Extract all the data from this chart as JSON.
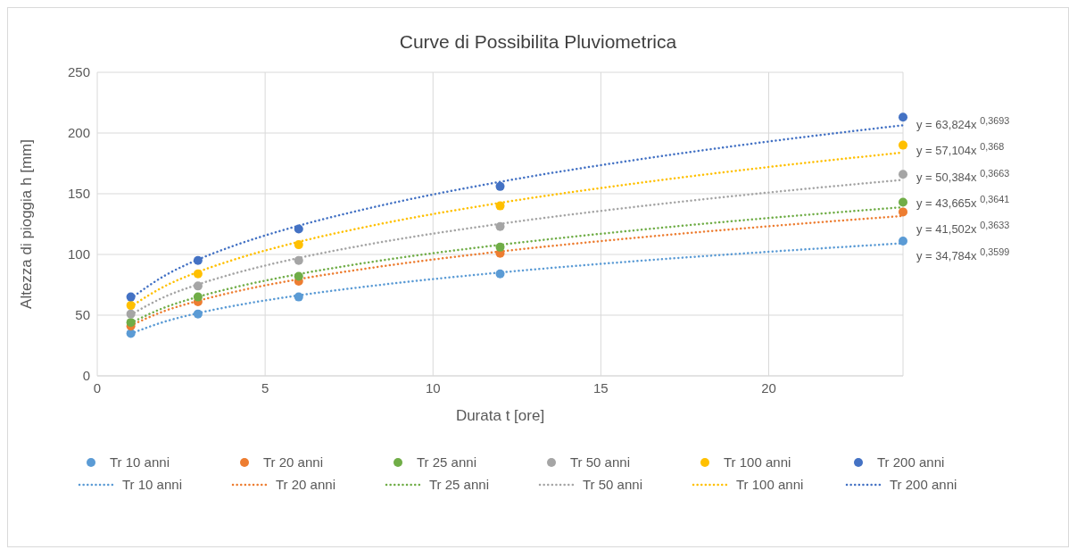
{
  "chart_data": {
    "type": "scatter",
    "title": "Curve di Possibilita Pluviometrica",
    "xlabel": "Durata t [ore]",
    "ylabel": "Altezza di pioggia h [mm]",
    "xlim": [
      0,
      24
    ],
    "xticks": [
      0,
      5,
      10,
      15,
      20
    ],
    "ylim": [
      0,
      250
    ],
    "yticks": [
      0,
      50,
      100,
      150,
      200,
      250
    ],
    "grid": true,
    "legend": "bottom",
    "x": [
      1,
      3,
      6,
      12,
      24
    ],
    "series": [
      {
        "name": "Tr 10 anni",
        "marker": "circle",
        "color": "#5b9bd5",
        "values": [
          35,
          51,
          65,
          84,
          111
        ]
      },
      {
        "name": "Tr 20 anni",
        "marker": "circle",
        "color": "#ed7d31",
        "values": [
          41,
          61,
          78,
          101,
          135
        ]
      },
      {
        "name": "Tr 25 anni",
        "marker": "circle",
        "color": "#70ad47",
        "values": [
          44,
          65,
          82,
          106,
          143
        ]
      },
      {
        "name": "Tr 50 anni",
        "marker": "circle",
        "color": "#a5a5a5",
        "values": [
          51,
          74,
          95,
          123,
          166
        ]
      },
      {
        "name": "Tr 100 anni",
        "marker": "circle",
        "color": "#ffc000",
        "values": [
          58,
          84,
          108,
          140,
          190
        ]
      },
      {
        "name": "Tr 200 anni",
        "marker": "circle",
        "color": "#4472c4",
        "values": [
          65,
          95,
          121,
          156,
          213
        ]
      },
      {
        "type": "line",
        "line_style": "dotted",
        "name": "Tr 10 anni",
        "color": "#5b9bd5",
        "x": [
          1,
          2,
          3,
          4,
          6,
          8,
          12,
          16,
          20,
          24
        ],
        "values": [
          34.8,
          44.6,
          51.7,
          57.3,
          66.3,
          73.5,
          85.1,
          94.4,
          102.2,
          109.2
        ]
      },
      {
        "type": "line",
        "line_style": "dotted",
        "name": "Tr 20 anni",
        "color": "#ed7d31",
        "x": [
          1,
          2,
          3,
          4,
          6,
          8,
          12,
          16,
          20,
          24
        ],
        "values": [
          41.5,
          53.4,
          61.8,
          68.7,
          79.6,
          88.3,
          102.4,
          113.6,
          123.2,
          131.7
        ]
      },
      {
        "type": "line",
        "line_style": "dotted",
        "name": "Tr 25 anni",
        "color": "#70ad47",
        "x": [
          1,
          2,
          3,
          4,
          6,
          8,
          12,
          16,
          20,
          24
        ],
        "values": [
          43.7,
          56.2,
          65.1,
          72.3,
          83.8,
          93.1,
          107.9,
          119.8,
          130.0,
          138.9
        ]
      },
      {
        "type": "line",
        "line_style": "dotted",
        "name": "Tr 50 anni",
        "color": "#a5a5a5",
        "x": [
          1,
          2,
          3,
          4,
          6,
          8,
          12,
          16,
          20,
          24
        ],
        "values": [
          50.4,
          65.0,
          75.3,
          83.7,
          97.1,
          107.9,
          125.2,
          139.1,
          151.0,
          161.4
        ]
      },
      {
        "type": "line",
        "line_style": "dotted",
        "name": "Tr 100 anni",
        "color": "#ffc000",
        "x": [
          1,
          2,
          3,
          4,
          6,
          8,
          12,
          16,
          20,
          24
        ],
        "values": [
          57.1,
          73.7,
          85.6,
          95.1,
          110.4,
          122.7,
          142.5,
          158.4,
          172.0,
          183.9
        ]
      },
      {
        "type": "line",
        "line_style": "dotted",
        "name": "Tr 200 anni",
        "color": "#4472c4",
        "x": [
          1,
          2,
          3,
          4,
          6,
          8,
          12,
          16,
          20,
          24
        ],
        "values": [
          63.8,
          82.4,
          95.8,
          106.5,
          123.7,
          137.5,
          159.8,
          177.7,
          193.0,
          206.4
        ]
      }
    ],
    "annotations": [
      "y = 63,824x $^{0,3693}$",
      "y = 57,104x $^{0,368}$",
      "y = 50,384x $^{0,3663}$",
      "y = 43,665x $^{0,3641}$",
      "y = 41,502x $^{0,3633}$",
      "y = 34,784x $^{0,3599}$"
    ]
  }
}
